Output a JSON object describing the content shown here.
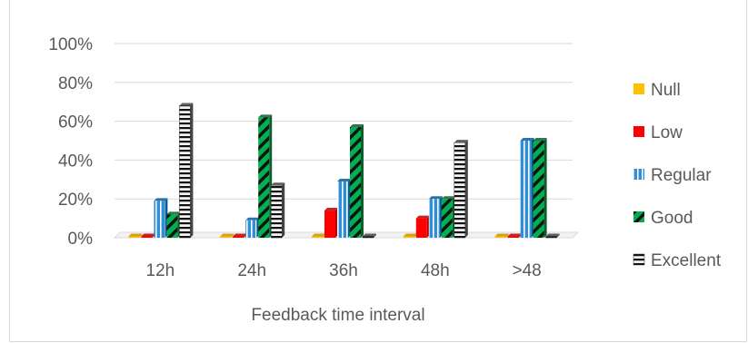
{
  "chart_data": {
    "type": "bar",
    "title": "",
    "xlabel": "Feedback time interval",
    "ylabel": "",
    "ylim": [
      0,
      100
    ],
    "y_ticks": [
      "0%",
      "20%",
      "40%",
      "60%",
      "80%",
      "100%"
    ],
    "grid": true,
    "legend_position": "right",
    "categories": [
      "12h",
      "24h",
      "36h",
      "48h",
      ">48"
    ],
    "series": [
      {
        "name": "Null",
        "color": "#ffc000",
        "values": [
          0,
          0,
          0,
          0,
          0
        ]
      },
      {
        "name": "Low",
        "color": "#ff0000",
        "values": [
          0,
          0,
          14,
          10,
          0
        ]
      },
      {
        "name": "Regular",
        "color": "#0070c0",
        "values": [
          19,
          9,
          29,
          20,
          50
        ]
      },
      {
        "name": "Good",
        "color": "#00b050",
        "values": [
          12,
          62,
          57,
          20,
          50
        ]
      },
      {
        "name": "Excellent",
        "color": "#ffffff",
        "values": [
          68,
          27,
          0,
          49,
          0
        ]
      }
    ]
  }
}
